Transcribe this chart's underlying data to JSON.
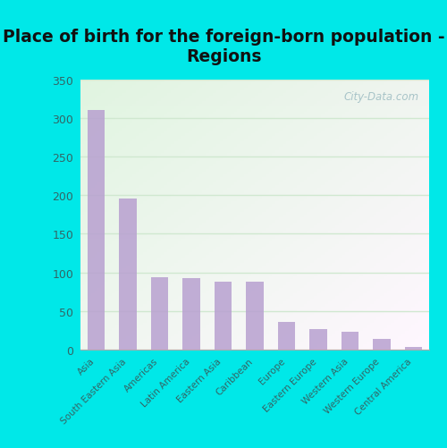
{
  "title": "Place of birth for the foreign-born population -\nRegions",
  "categories": [
    "Asia",
    "South Eastern Asia",
    "Americas",
    "Latin America",
    "Eastern Asia",
    "Caribbean",
    "Europe",
    "Eastern Europe",
    "Western Asia",
    "Western Europe",
    "Central America"
  ],
  "values": [
    311,
    196,
    94,
    93,
    88,
    88,
    35,
    26,
    23,
    14,
    3
  ],
  "bar_color": "#b8a0d0",
  "background_outer": "#00e8e8",
  "background_inner": "#e8f5e8",
  "ylim": [
    0,
    350
  ],
  "yticks": [
    0,
    50,
    100,
    150,
    200,
    250,
    300,
    350
  ],
  "title_fontsize": 13.5,
  "tick_label_fontsize": 7.5,
  "watermark_text": "City-Data.com",
  "watermark_color": "#a8c4c8",
  "grid_color": "#d0e8d0",
  "ylabel_color": "#336666",
  "xlabel_color": "#336666",
  "title_color": "#111111"
}
